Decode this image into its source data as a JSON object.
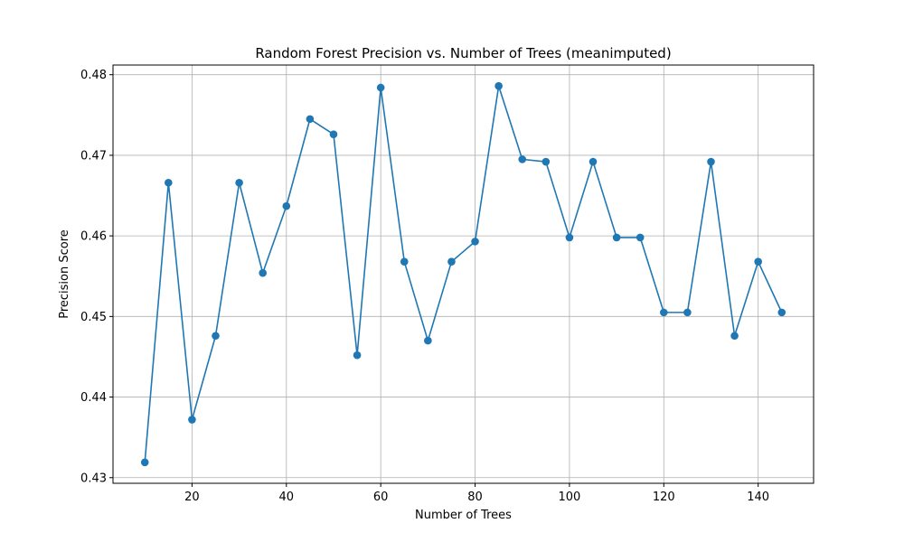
{
  "chart_data": {
    "type": "line",
    "title": "Random Forest Precision vs. Number of Trees (meanimputed)",
    "xlabel": "Number of Trees",
    "ylabel": "Precision Score",
    "xlim": [
      3.25,
      151.75
    ],
    "ylim": [
      0.4293,
      0.4812
    ],
    "xticks": [
      20,
      40,
      60,
      80,
      100,
      120,
      140
    ],
    "yticks": [
      0.43,
      0.44,
      0.45,
      0.46,
      0.47,
      0.48
    ],
    "ytick_labels": [
      "0.43",
      "0.44",
      "0.45",
      "0.46",
      "0.47",
      "0.48"
    ],
    "grid": true,
    "line_color": "#1f77b4",
    "marker": "circle",
    "x": [
      10,
      15,
      20,
      25,
      30,
      35,
      40,
      45,
      50,
      55,
      60,
      65,
      70,
      75,
      80,
      85,
      90,
      95,
      100,
      105,
      110,
      115,
      120,
      125,
      130,
      135,
      140,
      145
    ],
    "series": [
      {
        "values": [
          0.4319,
          0.4666,
          0.4372,
          0.4476,
          0.4666,
          0.4554,
          0.4637,
          0.4745,
          0.4726,
          0.4452,
          0.4784,
          0.4568,
          0.447,
          0.4568,
          0.4593,
          0.4786,
          0.4695,
          0.4692,
          0.4598,
          0.4692,
          0.4598,
          0.4598,
          0.4505,
          0.4505,
          0.4692,
          0.4476,
          0.4568,
          0.4505
        ]
      }
    ]
  }
}
